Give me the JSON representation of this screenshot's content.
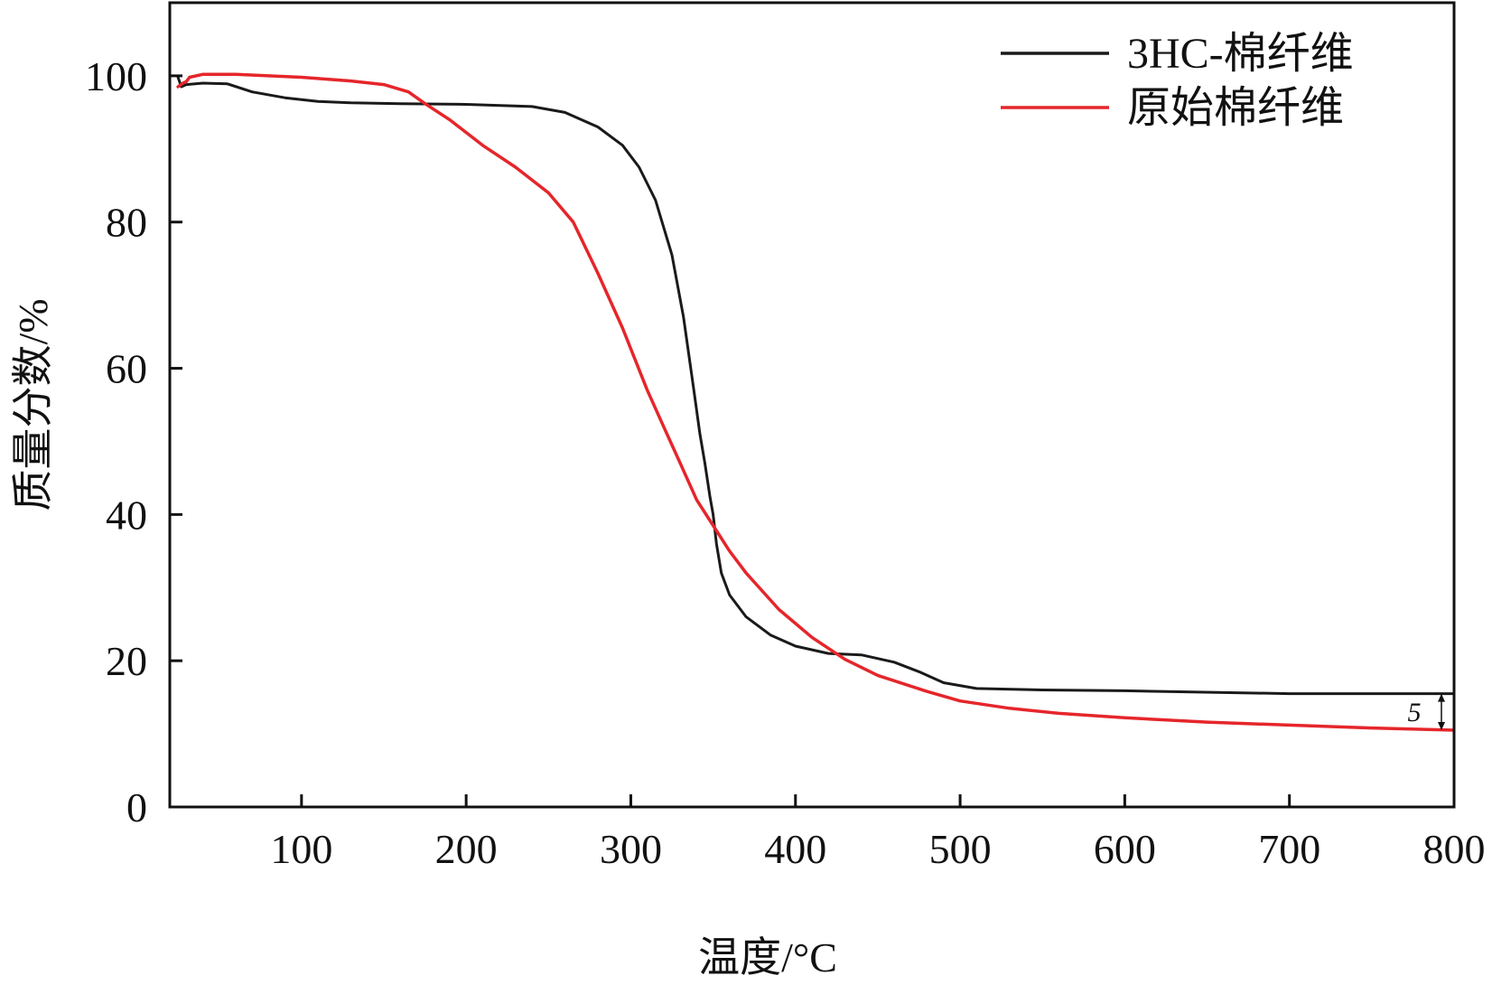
{
  "chart_data": {
    "type": "line",
    "title": "",
    "xlabel": "温度/°C",
    "ylabel": "质量分数/%",
    "xlim": [
      20,
      800
    ],
    "ylim": [
      0,
      110
    ],
    "x_ticks": [
      100,
      200,
      300,
      400,
      500,
      600,
      700,
      800
    ],
    "y_ticks": [
      0,
      20,
      40,
      60,
      80,
      100
    ],
    "grid": false,
    "legend_position": "top-right",
    "series": [
      {
        "name": "3HC-棉纤维",
        "color": "#1a1a1a",
        "x": [
          25,
          27,
          30,
          40,
          55,
          70,
          90,
          110,
          130,
          160,
          200,
          240,
          260,
          280,
          295,
          305,
          315,
          325,
          332,
          338,
          342,
          345,
          348,
          350,
          352,
          355,
          360,
          370,
          385,
          400,
          420,
          440,
          460,
          475,
          490,
          510,
          550,
          600,
          700,
          800
        ],
        "y": [
          99.8,
          98.5,
          98.8,
          99.0,
          98.9,
          97.8,
          97.0,
          96.5,
          96.3,
          96.2,
          96.1,
          95.8,
          95.0,
          93.0,
          90.5,
          87.5,
          83.0,
          75.5,
          67.0,
          57.5,
          51.0,
          47.0,
          42.5,
          40.0,
          36.0,
          32.0,
          29.0,
          26.0,
          23.5,
          22.0,
          21.0,
          20.8,
          19.8,
          18.5,
          17.0,
          16.2,
          16.0,
          15.9,
          15.5,
          15.5
        ]
      },
      {
        "name": "原始棉纤维",
        "color": "#e5262b",
        "x": [
          25,
          28,
          30,
          32,
          40,
          60,
          100,
          130,
          150,
          165,
          175,
          190,
          210,
          230,
          250,
          265,
          280,
          295,
          310,
          320,
          330,
          340,
          350,
          360,
          370,
          390,
          410,
          430,
          450,
          480,
          500,
          530,
          560,
          600,
          650,
          700,
          750,
          800
        ],
        "y": [
          98.5,
          99.0,
          99.2,
          99.8,
          100.2,
          100.2,
          99.8,
          99.3,
          98.8,
          97.8,
          96.2,
          94.0,
          90.5,
          87.5,
          84.0,
          80.0,
          73.0,
          65.5,
          57.0,
          52.0,
          47.0,
          42.0,
          38.5,
          35.0,
          32.0,
          27.0,
          23.2,
          20.2,
          18.0,
          15.8,
          14.5,
          13.5,
          12.8,
          12.2,
          11.6,
          11.2,
          10.8,
          10.5
        ]
      }
    ],
    "annotations": [
      {
        "text": "5",
        "x": 800,
        "y_from": 10.5,
        "y_to": 15.5
      }
    ]
  }
}
